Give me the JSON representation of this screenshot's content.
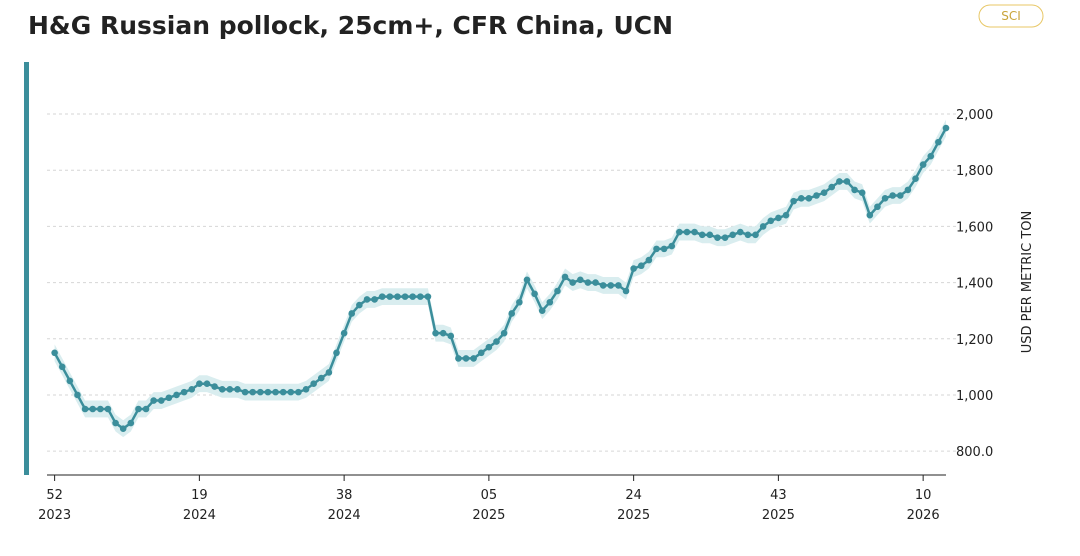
{
  "title": "H&G Russian pollock, 25cm+, CFR China, UCN",
  "badge": "SCI",
  "chart_data": {
    "type": "line",
    "y_label": "USD PER METRIC TON",
    "x": [
      0,
      1,
      2,
      3,
      4,
      5,
      6,
      7,
      8,
      9,
      10,
      11,
      12,
      13,
      14,
      15,
      16,
      17,
      18,
      19,
      20,
      21,
      22,
      23,
      24,
      25,
      26,
      27,
      28,
      29,
      30,
      31,
      32,
      33,
      34,
      35,
      36,
      37,
      38,
      39,
      40,
      41,
      42,
      43,
      44,
      45,
      46,
      47,
      48,
      49,
      50,
      51,
      52,
      53,
      54,
      55,
      56,
      57,
      58,
      59,
      60,
      61,
      62,
      63,
      64,
      65,
      66,
      67,
      68,
      69,
      70,
      71,
      72,
      73,
      74,
      75,
      76,
      77,
      78,
      79,
      80,
      81,
      82,
      83,
      84,
      85,
      86,
      87,
      88,
      89,
      90,
      91,
      92,
      93,
      94,
      95,
      96,
      97,
      98,
      99,
      100,
      101,
      102,
      103,
      104,
      105,
      106,
      107,
      108,
      109,
      110,
      111,
      112,
      113,
      114,
      115,
      116,
      117
    ],
    "xlim": [
      -1,
      117
    ],
    "xticks": [
      {
        "value": 0,
        "label": "52",
        "year": "2023"
      },
      {
        "value": 19,
        "label": "19",
        "year": "2024"
      },
      {
        "value": 38,
        "label": "38",
        "year": "2024"
      },
      {
        "value": 57,
        "label": "05",
        "year": "2025"
      },
      {
        "value": 76,
        "label": "24",
        "year": "2025"
      },
      {
        "value": 95,
        "label": "43",
        "year": "2025"
      },
      {
        "value": 114,
        "label": "10",
        "year": "2026"
      }
    ],
    "ylim": [
      715,
      2050
    ],
    "yticks": [
      {
        "value": 800,
        "label": "800.0"
      },
      {
        "value": 1000,
        "label": "1,000"
      },
      {
        "value": 1200,
        "label": "1,200"
      },
      {
        "value": 1400,
        "label": "1,400"
      },
      {
        "value": 1600,
        "label": "1,600"
      },
      {
        "value": 1800,
        "label": "1,800"
      },
      {
        "value": 2000,
        "label": "2,000"
      }
    ],
    "grid": true,
    "series": [
      {
        "color": "#3b8e9b",
        "values": [
          1150,
          1100,
          1050,
          1000,
          950,
          950,
          950,
          950,
          900,
          880,
          900,
          950,
          950,
          980,
          980,
          990,
          1000,
          1010,
          1020,
          1040,
          1040,
          1030,
          1020,
          1020,
          1020,
          1010,
          1010,
          1010,
          1010,
          1010,
          1010,
          1010,
          1010,
          1020,
          1040,
          1060,
          1080,
          1150,
          1220,
          1290,
          1320,
          1340,
          1340,
          1350,
          1350,
          1350,
          1350,
          1350,
          1350,
          1350,
          1220,
          1220,
          1210,
          1130,
          1130,
          1130,
          1150,
          1170,
          1190,
          1220,
          1290,
          1330,
          1410,
          1360,
          1300,
          1330,
          1370,
          1420,
          1400,
          1410,
          1400,
          1400,
          1390,
          1390,
          1390,
          1370,
          1450,
          1460,
          1480,
          1520,
          1520,
          1530,
          1580,
          1580,
          1580,
          1570,
          1570,
          1560,
          1560,
          1570,
          1580,
          1570,
          1570,
          1600,
          1620,
          1630,
          1640,
          1690,
          1700,
          1700,
          1710,
          1720,
          1740,
          1760,
          1760,
          1730,
          1720,
          1640,
          1670,
          1700,
          1710,
          1710,
          1730,
          1770,
          1820,
          1850,
          1900,
          1950
        ]
      }
    ],
    "band": {
      "color": "#d9edef",
      "low": [
        1120,
        1070,
        1020,
        970,
        920,
        920,
        920,
        920,
        870,
        850,
        870,
        920,
        920,
        950,
        950,
        960,
        970,
        980,
        990,
        1010,
        1010,
        1000,
        990,
        990,
        990,
        980,
        980,
        980,
        980,
        980,
        980,
        980,
        980,
        990,
        1010,
        1030,
        1050,
        1120,
        1190,
        1260,
        1290,
        1310,
        1310,
        1320,
        1320,
        1320,
        1320,
        1320,
        1320,
        1320,
        1190,
        1190,
        1180,
        1100,
        1100,
        1100,
        1120,
        1140,
        1160,
        1190,
        1260,
        1300,
        1380,
        1330,
        1270,
        1300,
        1340,
        1390,
        1370,
        1380,
        1370,
        1370,
        1360,
        1360,
        1360,
        1340,
        1420,
        1430,
        1450,
        1490,
        1490,
        1500,
        1550,
        1550,
        1550,
        1540,
        1540,
        1530,
        1530,
        1540,
        1550,
        1540,
        1540,
        1570,
        1590,
        1600,
        1610,
        1660,
        1670,
        1670,
        1680,
        1690,
        1710,
        1730,
        1730,
        1700,
        1690,
        1610,
        1640,
        1670,
        1680,
        1680,
        1700,
        1740,
        1790,
        1820,
        1870,
        1920
      ],
      "high": [
        1180,
        1130,
        1080,
        1030,
        980,
        980,
        980,
        980,
        930,
        910,
        930,
        980,
        980,
        1010,
        1010,
        1020,
        1030,
        1040,
        1050,
        1070,
        1070,
        1060,
        1050,
        1050,
        1050,
        1040,
        1040,
        1040,
        1040,
        1040,
        1040,
        1040,
        1040,
        1050,
        1070,
        1090,
        1110,
        1180,
        1250,
        1320,
        1350,
        1370,
        1370,
        1380,
        1380,
        1380,
        1380,
        1380,
        1380,
        1380,
        1250,
        1250,
        1240,
        1160,
        1160,
        1160,
        1180,
        1200,
        1220,
        1250,
        1320,
        1360,
        1440,
        1390,
        1330,
        1360,
        1400,
        1450,
        1430,
        1440,
        1430,
        1430,
        1420,
        1420,
        1420,
        1400,
        1480,
        1490,
        1510,
        1550,
        1550,
        1560,
        1610,
        1610,
        1610,
        1600,
        1600,
        1590,
        1590,
        1600,
        1610,
        1600,
        1600,
        1630,
        1650,
        1660,
        1670,
        1720,
        1730,
        1730,
        1740,
        1750,
        1770,
        1790,
        1790,
        1760,
        1750,
        1670,
        1700,
        1730,
        1740,
        1740,
        1760,
        1800,
        1850,
        1880,
        1930,
        1980
      ]
    }
  }
}
